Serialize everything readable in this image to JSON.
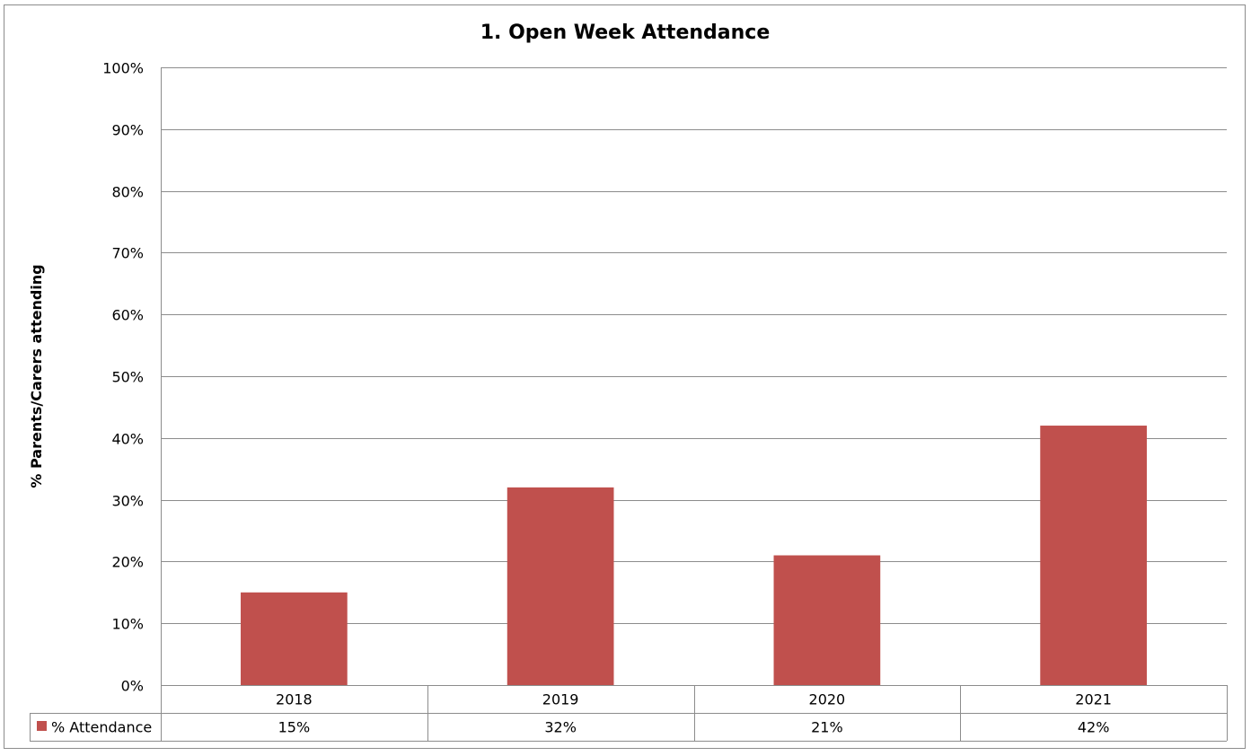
{
  "chart_data": {
    "type": "bar",
    "title": "1. Open Week Attendance",
    "xlabel": "",
    "ylabel": "% Parents/Carers attending",
    "categories": [
      "2018",
      "2019",
      "2020",
      "2021"
    ],
    "series": [
      {
        "name": "% Attendance",
        "values": [
          15,
          32,
          21,
          42
        ],
        "labels": [
          "15%",
          "32%",
          "21%",
          "42%"
        ],
        "color": "#C0504D"
      }
    ],
    "ylim": [
      0,
      100
    ],
    "yticks": [
      0,
      10,
      20,
      30,
      40,
      50,
      60,
      70,
      80,
      90,
      100
    ],
    "ytick_labels": [
      "0%",
      "10%",
      "20%",
      "30%",
      "40%",
      "50%",
      "60%",
      "70%",
      "80%",
      "90%",
      "100%"
    ],
    "grid": true,
    "legend": "data-table-left",
    "data_table": true
  }
}
